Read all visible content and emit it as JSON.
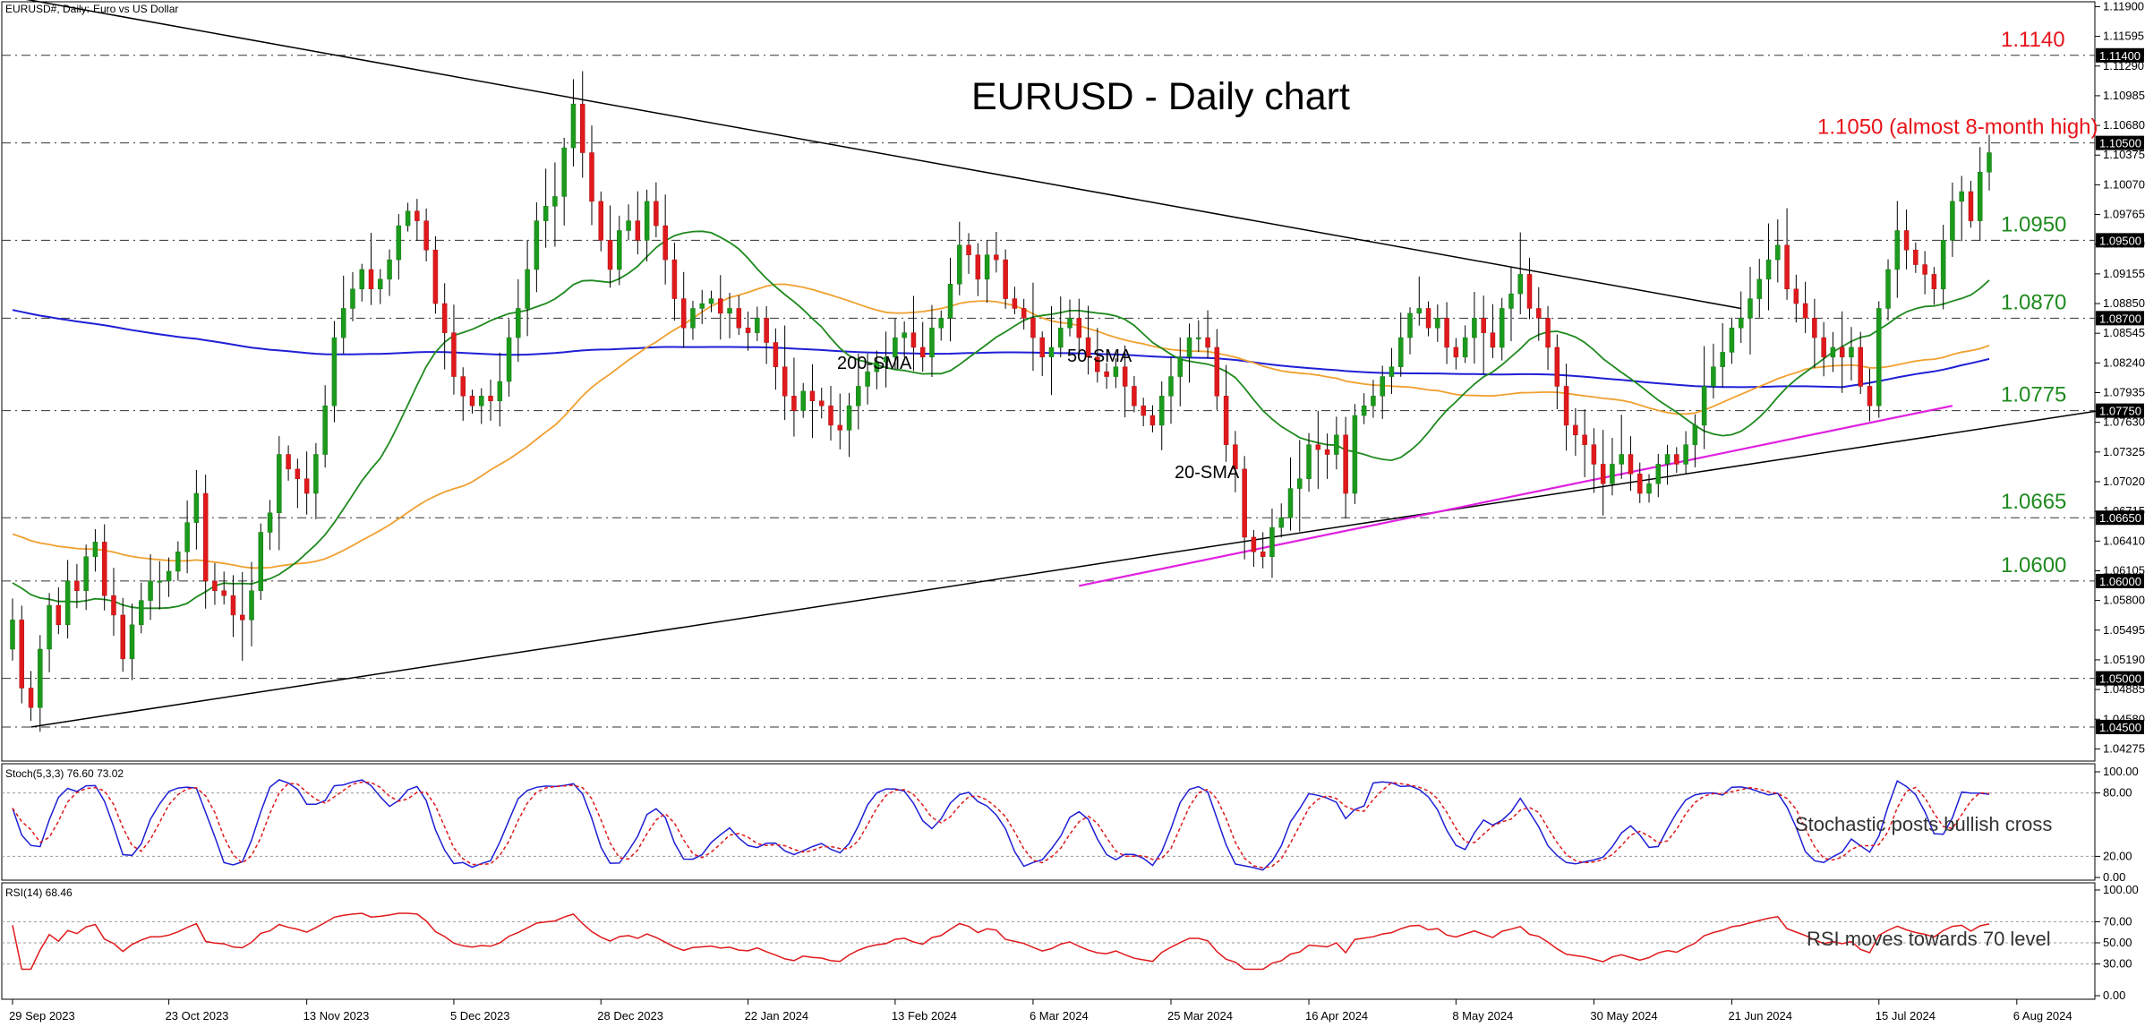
{
  "chart_data": {
    "type": "candlestick",
    "symbol_label": "EURUSD#, Daily:",
    "symbol_desc": "Euro vs US Dollar",
    "title": "EURUSD - Daily chart",
    "x_ticks": [
      "29 Sep 2023",
      "23 Oct 2023",
      "13 Nov 2023",
      "5 Dec 2023",
      "28 Dec 2023",
      "22 Jan 2024",
      "13 Feb 2024",
      "6 Mar 2024",
      "25 Mar 2024",
      "16 Apr 2024",
      "8 May 2024",
      "30 May 2024",
      "21 Jun 2024",
      "15 Jul 2024",
      "6 Aug 2024"
    ],
    "y_ticks": [
      "1.11900",
      "1.11595",
      "1.11290",
      "1.10985",
      "1.10680",
      "1.10375",
      "1.10070",
      "1.09765",
      "1.09460",
      "1.09155",
      "1.08850",
      "1.08545",
      "1.08240",
      "1.07935",
      "1.07630",
      "1.07325",
      "1.07020",
      "1.06715",
      "1.06410",
      "1.06105",
      "1.05800",
      "1.05495",
      "1.05190",
      "1.04885",
      "1.04580",
      "1.04275"
    ],
    "ylim": [
      1.0415,
      1.1195
    ],
    "levels": [
      {
        "value": 1.114,
        "label": "1.1140",
        "tag": "1.11400",
        "color": "#e8141b"
      },
      {
        "value": 1.105,
        "label": "1.1050 (almost 8-month high)",
        "tag": "1.10500",
        "color": "#e8141b"
      },
      {
        "value": 1.095,
        "label": "1.0950",
        "tag": "1.09500",
        "color": "#1e8a1e"
      },
      {
        "value": 1.087,
        "label": "1.0870",
        "tag": "1.08700",
        "color": "#1e8a1e"
      },
      {
        "value": 1.0775,
        "label": "1.0775",
        "tag": "1.07750",
        "color": "#1e8a1e"
      },
      {
        "value": 1.0665,
        "label": "1.0665",
        "tag": "1.06650",
        "color": "#1e8a1e"
      },
      {
        "value": 1.06,
        "label": "1.0600",
        "tag": "1.06000",
        "color": "#1e8a1e"
      },
      {
        "value": 1.05,
        "label": "",
        "tag": "1.05000",
        "color": "#1e8a1e"
      },
      {
        "value": 1.045,
        "label": "",
        "tag": "1.04500",
        "color": "#1e8a1e"
      }
    ],
    "ma_labels": [
      {
        "text": "200-SMA",
        "color": "#1f1fd6"
      },
      {
        "text": "50-SMA",
        "color": "#f0a030"
      },
      {
        "text": "20-SMA",
        "color": "#1e8a1e"
      }
    ],
    "trendlines": [
      {
        "name": "upper",
        "points": [
          [
            0,
            1.12
          ],
          [
            188,
            1.088
          ]
        ],
        "color": "#000000"
      },
      {
        "name": "lower",
        "points": [
          [
            2,
            1.045
          ],
          [
            227,
            1.0775
          ]
        ],
        "color": "#000000"
      },
      {
        "name": "support",
        "points": [
          [
            116,
            1.0595
          ],
          [
            211,
            1.078
          ]
        ],
        "color": "#e020e0"
      }
    ],
    "stoch": {
      "label": "Stoch(5,3,3) 76.60 73.02",
      "ticks": [
        "100.00",
        "80.00",
        "20.00",
        "0.00"
      ],
      "annotation": "Stochastic posts bullish cross"
    },
    "rsi": {
      "label": "RSI(14) 68.46",
      "ticks": [
        "100.00",
        "70.00",
        "50.00",
        "30.00",
        "0.00"
      ],
      "annotation": "RSI moves towards 70 level"
    },
    "closes": [
      1.056,
      1.049,
      1.047,
      1.053,
      1.0575,
      1.0555,
      1.06,
      1.059,
      1.0625,
      1.064,
      1.0585,
      1.0565,
      1.052,
      1.0555,
      1.058,
      1.06,
      1.06,
      1.061,
      1.063,
      1.066,
      1.069,
      1.06,
      1.059,
      1.0585,
      1.0565,
      1.056,
      1.059,
      1.065,
      1.067,
      1.073,
      1.0715,
      1.0705,
      1.069,
      1.073,
      1.078,
      1.085,
      1.088,
      1.09,
      1.092,
      1.09,
      1.091,
      1.093,
      1.0965,
      1.098,
      1.097,
      1.094,
      1.0885,
      1.0855,
      1.081,
      1.079,
      1.078,
      1.079,
      1.0785,
      1.0805,
      1.085,
      1.088,
      1.092,
      1.097,
      1.0985,
      1.0995,
      1.1045,
      1.109,
      1.104,
      1.099,
      1.095,
      1.092,
      1.096,
      1.097,
      1.095,
      1.099,
      1.0965,
      1.093,
      1.089,
      1.086,
      1.088,
      1.0885,
      1.089,
      1.0875,
      1.088,
      1.086,
      1.0855,
      1.087,
      1.0845,
      1.082,
      1.079,
      1.0775,
      1.0795,
      1.0785,
      1.078,
      1.076,
      1.0755,
      1.078,
      1.08,
      1.0815,
      1.0825,
      1.083,
      1.085,
      1.0855,
      1.084,
      1.083,
      1.086,
      1.087,
      1.0905,
      1.0945,
      1.0935,
      1.091,
      1.0935,
      1.093,
      1.089,
      1.088,
      1.087,
      1.085,
      1.083,
      1.084,
      1.086,
      1.087,
      1.085,
      1.083,
      1.0815,
      1.081,
      1.082,
      1.08,
      1.078,
      1.077,
      1.076,
      1.079,
      1.081,
      1.083,
      1.085,
      1.085,
      1.084,
      1.079,
      1.074,
      1.0715,
      1.0645,
      1.063,
      1.0625,
      1.0655,
      1.0665,
      1.0695,
      1.0705,
      1.074,
      1.0735,
      1.073,
      1.075,
      1.069,
      1.077,
      1.078,
      1.079,
      1.081,
      1.082,
      1.085,
      1.0875,
      1.088,
      1.086,
      1.087,
      1.084,
      1.083,
      1.085,
      1.087,
      1.0855,
      1.084,
      1.088,
      1.0895,
      1.0915,
      1.088,
      1.087,
      1.084,
      1.08,
      1.076,
      1.075,
      1.074,
      1.072,
      1.07,
      1.072,
      1.073,
      1.071,
      1.069,
      1.07,
      1.072,
      1.073,
      1.072,
      1.074,
      1.076,
      1.08,
      1.082,
      1.0835,
      1.086,
      1.087,
      1.089,
      1.091,
      1.093,
      1.0945,
      1.09,
      1.0885,
      1.087,
      1.085,
      1.083,
      1.084,
      1.083,
      1.084,
      1.08,
      1.078,
      1.088,
      1.092,
      1.096,
      1.094,
      1.0925,
      1.0915,
      1.09,
      1.095,
      1.099,
      1.1,
      1.097,
      1.102,
      1.104
    ]
  }
}
